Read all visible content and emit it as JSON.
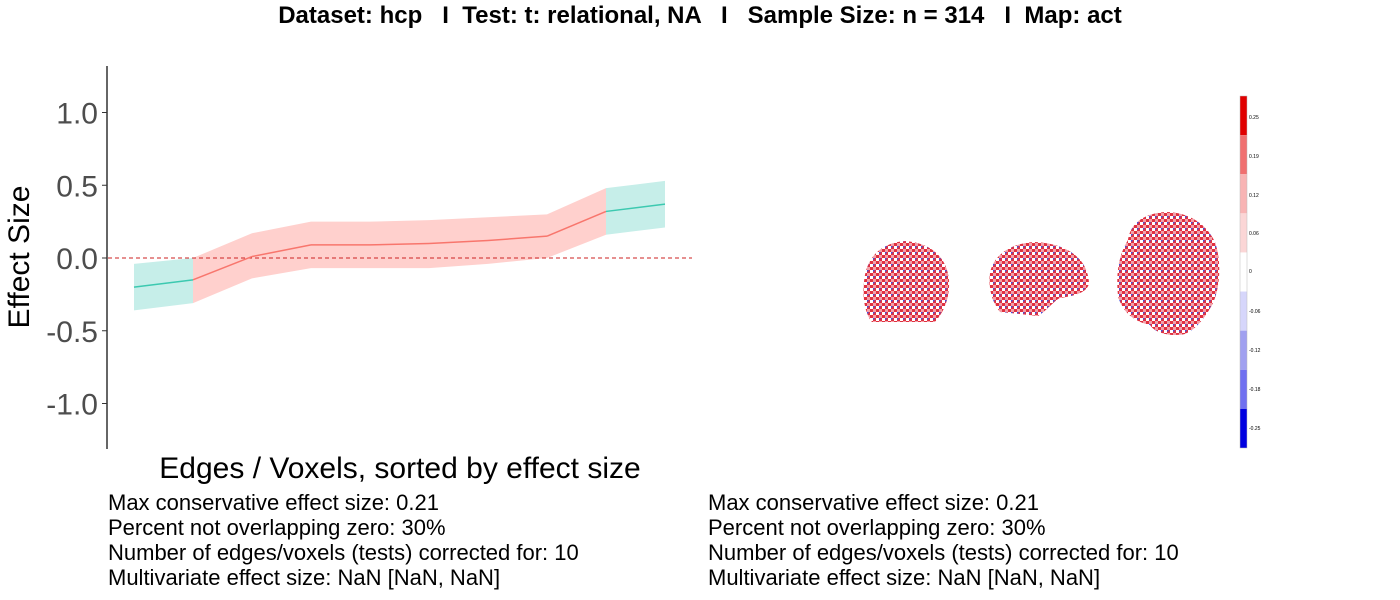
{
  "title": "Dataset: hcp   I  Test: t: relational, NA   I   Sample Size: n = 314   I  Map: act",
  "chart_data": {
    "type": "line",
    "ylabel": "Effect Size",
    "xlabel": "Edges / Voxels, sorted by effect size",
    "ylim": [
      -1.3,
      1.3
    ],
    "yticks": [
      "1.0",
      "0.5",
      "0.0",
      "-0.5",
      "-1.0"
    ],
    "ytick_values": [
      1.0,
      0.5,
      0.0,
      -0.5,
      -1.0
    ],
    "reference_line_y": 0,
    "grid": false,
    "x": [
      1,
      2,
      3,
      4,
      5,
      6,
      7,
      8,
      9,
      10
    ],
    "series": [
      {
        "values": [
          -0.2,
          -0.15,
          0.01,
          0.09,
          0.09,
          0.1,
          0.12,
          0.15,
          0.32,
          0.37
        ],
        "lower": [
          -0.36,
          -0.31,
          -0.14,
          -0.07,
          -0.07,
          -0.07,
          -0.04,
          0.0,
          0.16,
          0.21
        ],
        "upper": [
          -0.04,
          0.0,
          0.17,
          0.25,
          0.25,
          0.26,
          0.28,
          0.3,
          0.48,
          0.53
        ],
        "overlaps_zero": [
          false,
          true,
          true,
          true,
          true,
          true,
          true,
          true,
          false,
          false
        ]
      }
    ],
    "colors": {
      "overlap_line": "#F8766D",
      "overlap_band": "#FFD0CD",
      "nonoverlap_line": "#3CC9B0",
      "nonoverlap_band": "#C6EEE9",
      "zero_line": "#CC2222"
    }
  },
  "colorbar": {
    "tick_labels": [
      "0.25",
      "0.19",
      "0.12",
      "0.06",
      "0",
      "-0.06",
      "-0.12",
      "-0.18",
      "-0.25"
    ],
    "colors": [
      "#E00000",
      "#F07070",
      "#F8B4B4",
      "#FBD6D6",
      "#FFFFFF",
      "#D6D6FB",
      "#A0A0F0",
      "#7070F0",
      "#0000E0"
    ]
  },
  "brain_views": [
    "axial",
    "sagittal",
    "coronal"
  ],
  "stats_left": [
    "Max conservative effect size: 0.21",
    "Percent not overlapping zero: 30%",
    "Number of edges/voxels (tests) corrected for: 10",
    "Multivariate effect size: NaN [NaN, NaN]"
  ],
  "stats_right": [
    "Max conservative effect size: 0.21",
    "Percent not overlapping zero: 30%",
    "Number of edges/voxels (tests) corrected for: 10",
    "Multivariate effect size: NaN [NaN, NaN]"
  ]
}
